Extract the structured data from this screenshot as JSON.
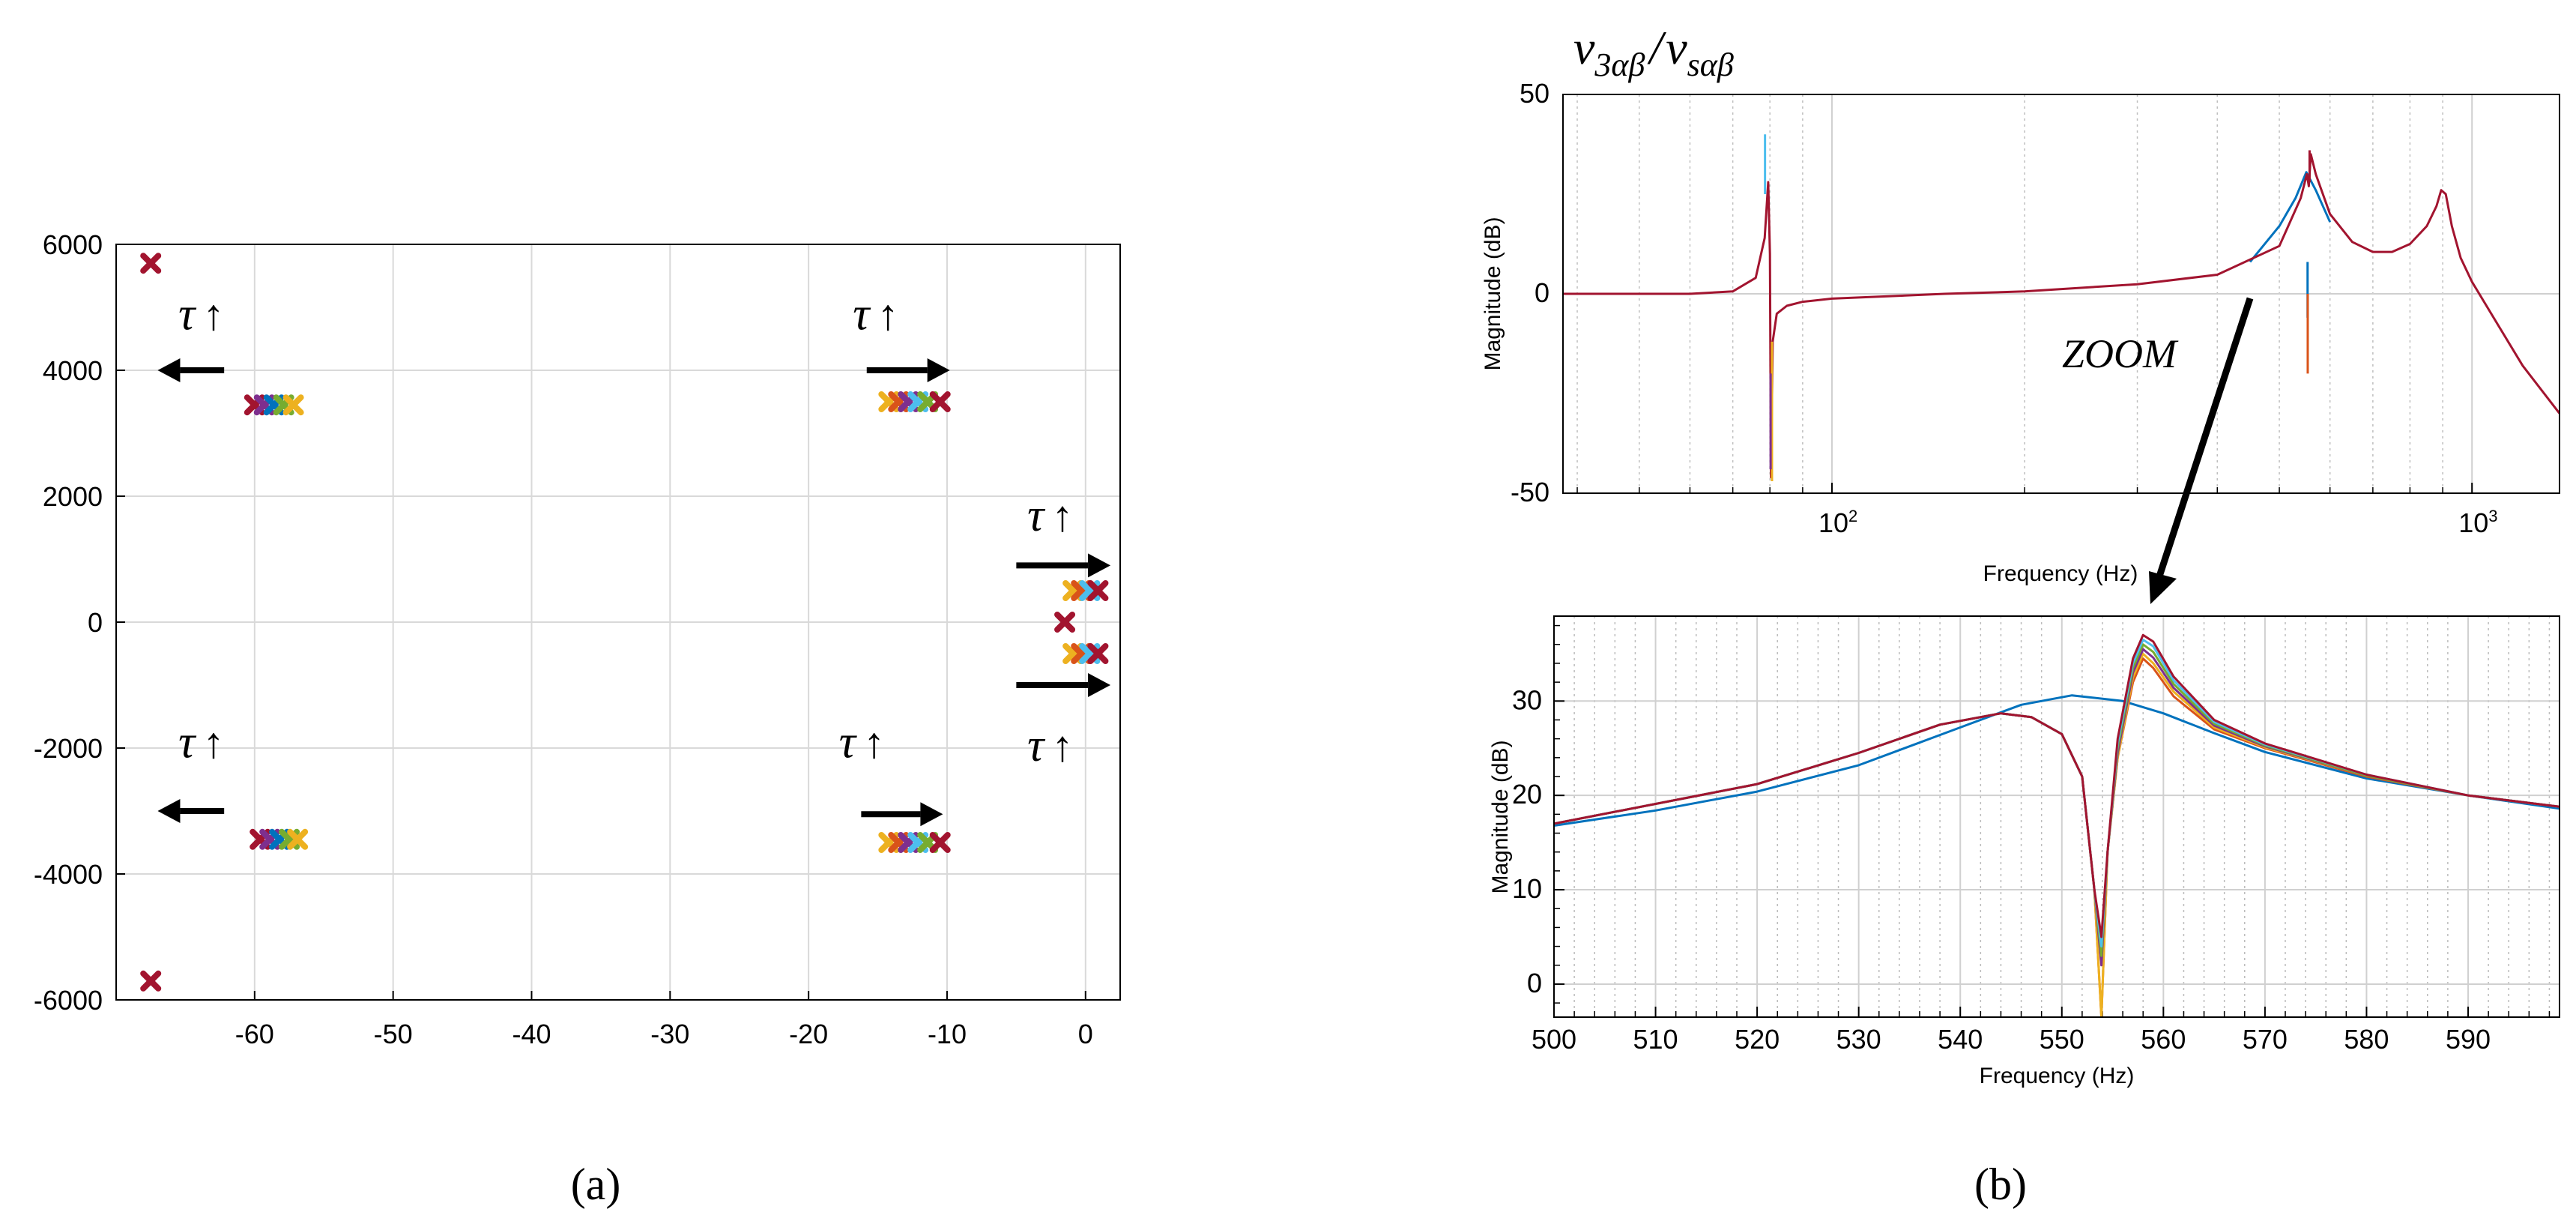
{
  "chart_data": [
    {
      "type": "scatter",
      "panel_label": "(a)",
      "xlim": [
        -70,
        2.5
      ],
      "ylim": [
        -6000,
        6000
      ],
      "xticks": [
        -60,
        -50,
        -40,
        -30,
        -20,
        -10,
        0
      ],
      "yticks": [
        -6000,
        -4000,
        -2000,
        0,
        2000,
        4000,
        6000
      ],
      "grid": true,
      "tau_symbol": "τ",
      "up_arrow": "↑",
      "clusters": [
        {
          "name": "far-upper",
          "points": [
            {
              "x": -67.5,
              "y": 5700,
              "color": "#a2142f"
            }
          ]
        },
        {
          "name": "far-lower",
          "points": [
            {
              "x": -67.5,
              "y": -5700,
              "color": "#a2142f"
            }
          ]
        },
        {
          "name": "left-upper",
          "points": [
            {
              "x": -60.0,
              "y": 3450,
              "color": "#a2142f"
            },
            {
              "x": -59.3,
              "y": 3450,
              "color": "#7e2f8e"
            },
            {
              "x": -58.6,
              "y": 3450,
              "color": "#0072bd"
            },
            {
              "x": -57.9,
              "y": 3450,
              "color": "#77ac30"
            },
            {
              "x": -57.2,
              "y": 3450,
              "color": "#edb120"
            }
          ]
        },
        {
          "name": "left-lower",
          "points": [
            {
              "x": -59.6,
              "y": -3450,
              "color": "#a2142f"
            },
            {
              "x": -58.9,
              "y": -3450,
              "color": "#7e2f8e"
            },
            {
              "x": -58.2,
              "y": -3450,
              "color": "#0072bd"
            },
            {
              "x": -57.5,
              "y": -3450,
              "color": "#77ac30"
            },
            {
              "x": -56.9,
              "y": -3450,
              "color": "#edb120"
            }
          ]
        },
        {
          "name": "mid-upper",
          "points": [
            {
              "x": -14.2,
              "y": 3500,
              "color": "#edb120"
            },
            {
              "x": -13.5,
              "y": 3500,
              "color": "#d95319"
            },
            {
              "x": -12.8,
              "y": 3500,
              "color": "#7e2f8e"
            },
            {
              "x": -12.1,
              "y": 3500,
              "color": "#4dbeee"
            },
            {
              "x": -11.4,
              "y": 3500,
              "color": "#77ac30"
            },
            {
              "x": -10.5,
              "y": 3500,
              "color": "#a2142f"
            }
          ]
        },
        {
          "name": "mid-lower",
          "points": [
            {
              "x": -14.2,
              "y": -3500,
              "color": "#edb120"
            },
            {
              "x": -13.5,
              "y": -3500,
              "color": "#d95319"
            },
            {
              "x": -12.8,
              "y": -3500,
              "color": "#7e2f8e"
            },
            {
              "x": -12.1,
              "y": -3500,
              "color": "#4dbeee"
            },
            {
              "x": -11.4,
              "y": -3500,
              "color": "#77ac30"
            },
            {
              "x": -10.5,
              "y": -3500,
              "color": "#a2142f"
            }
          ]
        },
        {
          "name": "near-upper",
          "points": [
            {
              "x": -0.9,
              "y": 500,
              "color": "#edb120"
            },
            {
              "x": -0.3,
              "y": 500,
              "color": "#d95319"
            },
            {
              "x": 0.3,
              "y": 500,
              "color": "#4dbeee"
            },
            {
              "x": 0.9,
              "y": 500,
              "color": "#a2142f"
            }
          ]
        },
        {
          "name": "near-origin",
          "points": [
            {
              "x": -1.5,
              "y": 0,
              "color": "#a2142f"
            }
          ]
        },
        {
          "name": "near-lower",
          "points": [
            {
              "x": -0.9,
              "y": -500,
              "color": "#edb120"
            },
            {
              "x": -0.3,
              "y": -500,
              "color": "#d95319"
            },
            {
              "x": 0.3,
              "y": -500,
              "color": "#4dbeee"
            },
            {
              "x": 0.9,
              "y": -500,
              "color": "#a2142f"
            }
          ]
        }
      ],
      "annotations": [
        {
          "label": "τ↑",
          "x": -65.5,
          "y": 4650,
          "arrow_dir": "left",
          "arrow_x0": -62.2,
          "arrow_x1": -67.0,
          "arrow_y": 4000
        },
        {
          "label": "τ↑",
          "x": -16.8,
          "y": 4650,
          "arrow_dir": "right",
          "arrow_x0": -15.8,
          "arrow_x1": -9.8,
          "arrow_y": 4000
        },
        {
          "label": "τ↑",
          "x": -4.2,
          "y": 1450,
          "arrow_dir": "right",
          "arrow_x0": -5.0,
          "arrow_x1": 1.8,
          "arrow_y": 900
        },
        {
          "label": "τ↑",
          "x": -65.5,
          "y": -2150,
          "arrow_dir": "left",
          "arrow_x0": -62.2,
          "arrow_x1": -67.0,
          "arrow_y": -3000
        },
        {
          "label": "τ↑",
          "x": -17.8,
          "y": -2150,
          "arrow_dir": "right",
          "arrow_x0": -16.2,
          "arrow_x1": -10.3,
          "arrow_y": -3050
        },
        {
          "label": "τ↑",
          "x": -4.2,
          "y": -2200,
          "arrow_dir": "right",
          "arrow_x0": -5.0,
          "arrow_x1": 1.8,
          "arrow_y": -1000
        }
      ]
    },
    {
      "type": "line",
      "title": "v3αβ / vsαβ",
      "title_main": "v",
      "title_sub1": "3αβ",
      "title_slash": "/",
      "title_sub2": "sαβ",
      "xscale": "log",
      "xlim": [
        38,
        1370
      ],
      "ylim": [
        -50,
        50
      ],
      "xlabel": "Frequency  (Hz)",
      "ylabel": "Magnitude (dB)",
      "yticks": [
        -50,
        0,
        50
      ],
      "xtick_major": [
        {
          "value": 100,
          "base": "10",
          "exp": "2"
        },
        {
          "value": 1000,
          "base": "10",
          "exp": "3"
        }
      ],
      "grid": true,
      "annotation": "ZOOM",
      "series": [
        {
          "name": "main",
          "color": "#a2142f",
          "x": [
            38,
            50,
            60,
            70,
            76,
            78.5,
            79.5,
            80,
            80.3,
            80.8,
            82,
            85,
            90,
            100,
            150,
            200,
            300,
            400,
            500,
            540,
            552,
            556,
            560,
            570,
            600,
            650,
            700,
            750,
            800,
            850,
            880,
            895,
            910,
            930,
            960,
            1000,
            1100,
            1200,
            1370
          ],
          "y": [
            0,
            0,
            0,
            0.6,
            4,
            14,
            28,
            10,
            -46,
            -12,
            -5,
            -3,
            -2,
            -1.2,
            0,
            0.6,
            2.4,
            4.8,
            12,
            24,
            30,
            27,
            35,
            30,
            20,
            13,
            10.5,
            10.5,
            12.5,
            17,
            22,
            26,
            25,
            17,
            9,
            3,
            -8,
            -18,
            -30
          ]
        },
        {
          "name": "blue",
          "color": "#0072bd",
          "x": [
            450,
            500,
            530,
            551,
            570,
            600
          ],
          "y": [
            8,
            17,
            24,
            30.5,
            26,
            18
          ]
        }
      ],
      "spikes": [
        {
          "x": 78.6,
          "y_top": 40,
          "y_bot": 25,
          "color": "#4dbeee"
        },
        {
          "x": 80.6,
          "y_top": -12,
          "y_bot": -47,
          "color": "#edb120"
        },
        {
          "x": 80.2,
          "y_top": -20,
          "y_bot": -44,
          "color": "#7e2f8e"
        },
        {
          "x": 553.5,
          "y_top": 8,
          "y_bot": -6,
          "color": "#0072bd"
        },
        {
          "x": 553.8,
          "y_top": 0,
          "y_bot": -20,
          "color": "#d95319"
        },
        {
          "x": 557.5,
          "y_top": 36,
          "y_bot": 28,
          "color": "#a2142f"
        }
      ]
    },
    {
      "type": "line",
      "panel_label": "(b)",
      "xlim": [
        500,
        599
      ],
      "ylim": [
        -3.5,
        39
      ],
      "xticks": [
        500,
        510,
        520,
        530,
        540,
        550,
        560,
        570,
        580,
        590
      ],
      "yticks": [
        0,
        10,
        20,
        30
      ],
      "xlabel": "Frequency  (Hz)",
      "ylabel": "Magnitude (dB)",
      "grid": true,
      "series": [
        {
          "name": "blue",
          "color": "#0072bd",
          "x": [
            500,
            510,
            520,
            530,
            540,
            546,
            551,
            556,
            560,
            565,
            570,
            580,
            590,
            599
          ],
          "y": [
            16.8,
            18.4,
            20.4,
            23.2,
            27.2,
            29.6,
            30.6,
            30.0,
            28.7,
            26.6,
            24.6,
            21.8,
            20.0,
            18.6
          ]
        },
        {
          "name": "orange",
          "color": "#d95319",
          "x": [
            500,
            520,
            530,
            538,
            544,
            547,
            550,
            552,
            553.2,
            553.9,
            554.5,
            555.5,
            557,
            558,
            559,
            561,
            565,
            570,
            580,
            590,
            599
          ],
          "y": [
            17.0,
            21.2,
            24.5,
            27.5,
            28.7,
            28.3,
            26.5,
            22.0,
            10.0,
            -3.5,
            14.0,
            24.0,
            32.0,
            34.5,
            33.5,
            30.5,
            27.0,
            25.0,
            22.0,
            20.0,
            18.8
          ]
        },
        {
          "name": "yellow",
          "color": "#edb120",
          "x": [
            500,
            520,
            530,
            538,
            544,
            547,
            550,
            552,
            553.2,
            553.9,
            554.5,
            555.5,
            557,
            558,
            559,
            561,
            565,
            570,
            580,
            590,
            599
          ],
          "y": [
            17.0,
            21.2,
            24.5,
            27.5,
            28.7,
            28.3,
            26.5,
            22.0,
            10.0,
            -3.5,
            14.0,
            24.0,
            32.5,
            35.0,
            34.0,
            31.0,
            27.2,
            25.1,
            22.1,
            20.0,
            18.8
          ]
        },
        {
          "name": "purple",
          "color": "#7e2f8e",
          "x": [
            500,
            520,
            530,
            538,
            544,
            547,
            550,
            552,
            553.2,
            553.9,
            554.5,
            555.5,
            557,
            558,
            559,
            561,
            565,
            570,
            580,
            590,
            599
          ],
          "y": [
            17.0,
            21.2,
            24.5,
            27.5,
            28.7,
            28.3,
            26.5,
            22.0,
            10.0,
            2.0,
            14.0,
            24.5,
            33.0,
            35.5,
            34.6,
            31.4,
            27.4,
            25.2,
            22.1,
            20.0,
            18.8
          ]
        },
        {
          "name": "green",
          "color": "#77ac30",
          "x": [
            500,
            520,
            530,
            538,
            544,
            547,
            550,
            552,
            553.2,
            553.9,
            554.5,
            555.5,
            557,
            558,
            559,
            561,
            565,
            570,
            580,
            590,
            599
          ],
          "y": [
            17.0,
            21.2,
            24.5,
            27.5,
            28.7,
            28.3,
            26.5,
            22.0,
            10.0,
            3.0,
            14.0,
            25.0,
            33.5,
            36.0,
            35.2,
            31.8,
            27.6,
            25.3,
            22.1,
            20.0,
            18.8
          ]
        },
        {
          "name": "cyan",
          "color": "#4dbeee",
          "x": [
            500,
            520,
            530,
            538,
            544,
            547,
            550,
            552,
            553.2,
            553.9,
            554.5,
            555.5,
            557,
            558,
            559,
            561,
            565,
            570,
            580,
            590,
            599
          ],
          "y": [
            17.0,
            21.2,
            24.5,
            27.5,
            28.7,
            28.3,
            26.5,
            22.0,
            10.0,
            4.0,
            14.0,
            25.5,
            34.0,
            36.5,
            35.8,
            32.2,
            27.8,
            25.4,
            22.2,
            20.0,
            18.8
          ]
        },
        {
          "name": "dark-red",
          "color": "#a2142f",
          "x": [
            500,
            520,
            530,
            538,
            544,
            547,
            550,
            552,
            553.2,
            553.9,
            554.5,
            555.5,
            557,
            558,
            559,
            561,
            565,
            570,
            580,
            590,
            599
          ],
          "y": [
            17.0,
            21.2,
            24.5,
            27.5,
            28.7,
            28.3,
            26.5,
            22.0,
            10.0,
            5.0,
            14.0,
            26.0,
            34.5,
            37.0,
            36.3,
            32.6,
            28.0,
            25.5,
            22.2,
            20.0,
            18.8
          ]
        }
      ]
    }
  ]
}
